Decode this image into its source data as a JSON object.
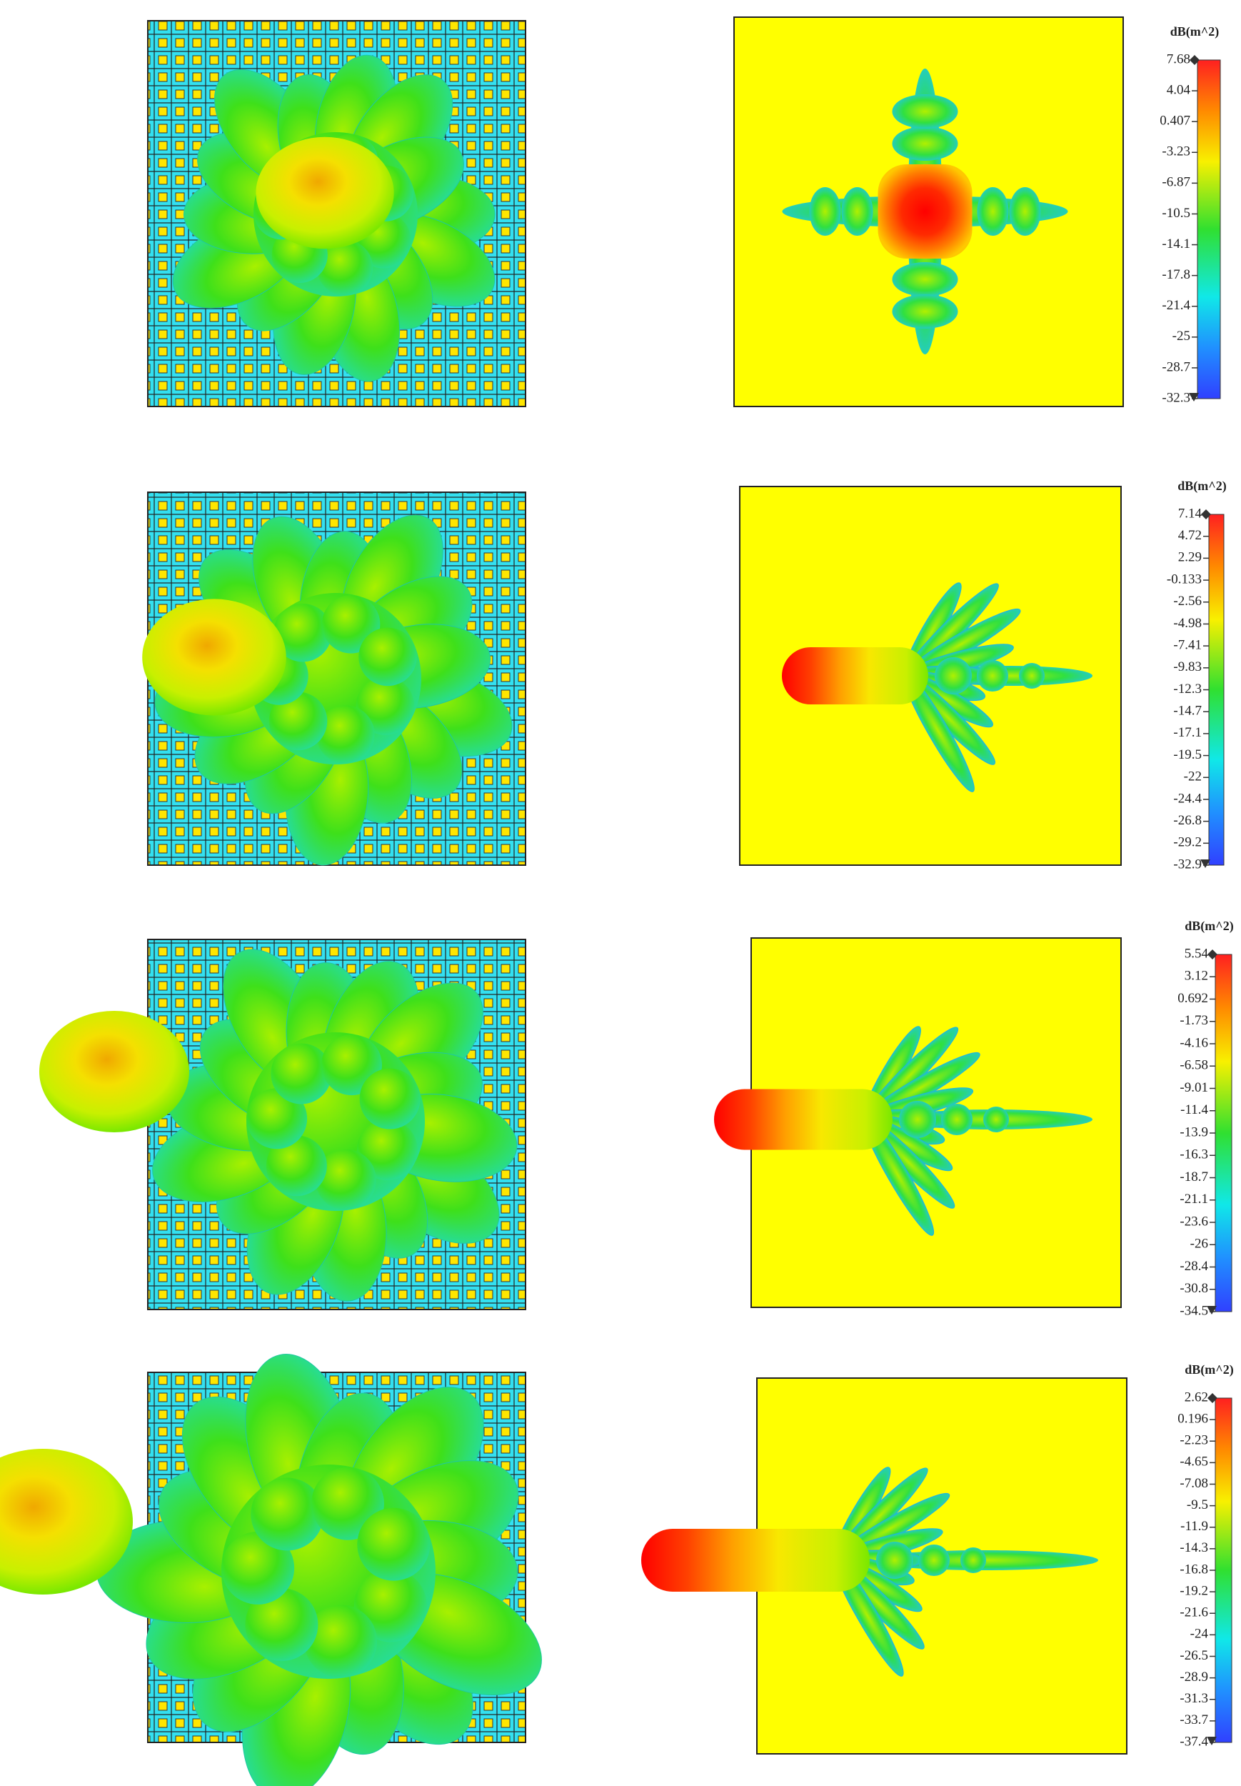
{
  "panels": [
    {
      "colorbar": {
        "title": "dB(m^2)",
        "ticks": [
          "7.68",
          "4.04",
          "0.407",
          "-3.23",
          "-6.87",
          "-10.5",
          "-14.1",
          "-17.8",
          "-21.4",
          "-25",
          "-28.7",
          "-32.3"
        ]
      }
    },
    {
      "colorbar": {
        "title": "dB(m^2)",
        "ticks": [
          "7.14",
          "4.72",
          "2.29",
          "-0.133",
          "-2.56",
          "-4.98",
          "-7.41",
          "-9.83",
          "-12.3",
          "-14.7",
          "-17.1",
          "-19.5",
          "-22",
          "-24.4",
          "-26.8",
          "-29.2",
          "-32.9"
        ]
      }
    },
    {
      "colorbar": {
        "title": "dB(m^2)",
        "ticks": [
          "5.54",
          "3.12",
          "0.692",
          "-1.73",
          "-4.16",
          "-6.58",
          "-9.01",
          "-11.4",
          "-13.9",
          "-16.3",
          "-18.7",
          "-21.1",
          "-23.6",
          "-26",
          "-28.4",
          "-30.8",
          "-34.5"
        ]
      }
    },
    {
      "colorbar": {
        "title": "dB(m^2)",
        "ticks": [
          "2.62",
          "0.196",
          "-2.23",
          "-4.65",
          "-7.08",
          "-9.5",
          "-11.9",
          "-14.3",
          "-16.8",
          "-19.2",
          "-21.6",
          "-24",
          "-26.5",
          "-28.9",
          "-31.3",
          "-33.7",
          "-37.4"
        ]
      }
    }
  ]
}
